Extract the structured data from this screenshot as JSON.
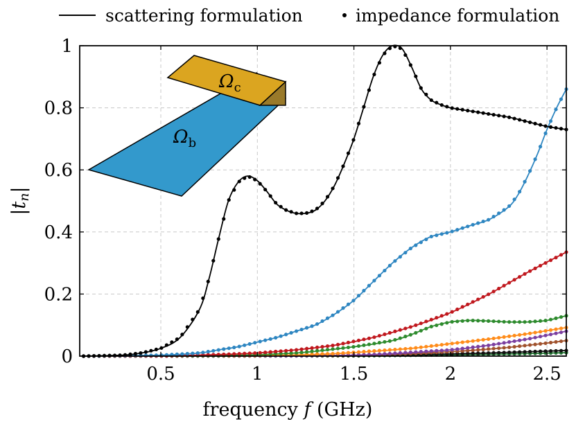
{
  "chart_data": {
    "type": "line",
    "xlabel": "frequency f (GHz)",
    "ylabel": "|t_n|",
    "xlim": [
      0.08,
      2.6
    ],
    "ylim": [
      0,
      1
    ],
    "xticks": [
      "0.5",
      "1",
      "1.5",
      "2",
      "2.5"
    ],
    "xtick_values": [
      0.5,
      1,
      1.5,
      2,
      2.5
    ],
    "yticks": [
      "0",
      "0.2",
      "0.4",
      "0.6",
      "0.8",
      "1"
    ],
    "ytick_values": [
      0,
      0.2,
      0.4,
      0.6,
      0.8,
      1
    ],
    "grid": true,
    "legend": {
      "placement": "top",
      "entries": [
        {
          "label": "scattering formulation",
          "marker": "line"
        },
        {
          "label": "impedance formulation",
          "marker": "dot"
        }
      ]
    },
    "inset": {
      "labels": [
        {
          "text": "Ω",
          "sub": "c"
        },
        {
          "text": "Ω",
          "sub": "b"
        }
      ],
      "colors": {
        "top_block": "#DBA520",
        "top_block_side": "#9A7A2A",
        "plate": "#3399CC"
      }
    },
    "series": [
      {
        "color": "#000000",
        "x": [
          0.1,
          0.3,
          0.4,
          0.5,
          0.6,
          0.7,
          0.75,
          0.8,
          0.85,
          0.9,
          0.95,
          1.0,
          1.05,
          1.1,
          1.15,
          1.2,
          1.25,
          1.3,
          1.35,
          1.4,
          1.45,
          1.5,
          1.55,
          1.6,
          1.65,
          1.7,
          1.75,
          1.8,
          1.85,
          1.9,
          1.95,
          2.0,
          2.1,
          2.2,
          2.3,
          2.4,
          2.5,
          2.6
        ],
        "y": [
          0.0,
          0.003,
          0.01,
          0.025,
          0.06,
          0.15,
          0.25,
          0.38,
          0.5,
          0.56,
          0.58,
          0.565,
          0.53,
          0.49,
          0.47,
          0.46,
          0.46,
          0.47,
          0.5,
          0.55,
          0.62,
          0.7,
          0.8,
          0.9,
          0.97,
          1.0,
          0.99,
          0.93,
          0.86,
          0.825,
          0.81,
          0.8,
          0.79,
          0.78,
          0.77,
          0.755,
          0.74,
          0.73
        ]
      },
      {
        "color": "#2E86C1",
        "x": [
          0.1,
          0.5,
          0.7,
          0.8,
          0.9,
          1.0,
          1.1,
          1.2,
          1.3,
          1.4,
          1.5,
          1.6,
          1.7,
          1.8,
          1.9,
          2.0,
          2.1,
          2.2,
          2.3,
          2.35,
          2.4,
          2.45,
          2.5,
          2.55,
          2.6
        ],
        "y": [
          0.0,
          0.003,
          0.01,
          0.02,
          0.03,
          0.045,
          0.06,
          0.08,
          0.1,
          0.135,
          0.18,
          0.24,
          0.3,
          0.35,
          0.385,
          0.4,
          0.42,
          0.44,
          0.48,
          0.52,
          0.58,
          0.65,
          0.73,
          0.8,
          0.86
        ]
      },
      {
        "color": "#C0181E",
        "x": [
          0.1,
          0.5,
          0.8,
          1.0,
          1.2,
          1.4,
          1.6,
          1.8,
          2.0,
          2.2,
          2.4,
          2.6
        ],
        "y": [
          0.0,
          0.001,
          0.005,
          0.01,
          0.02,
          0.035,
          0.06,
          0.095,
          0.14,
          0.2,
          0.27,
          0.335
        ]
      },
      {
        "color": "#2E8B2E",
        "x": [
          0.1,
          0.8,
          1.2,
          1.5,
          1.7,
          1.8,
          1.9,
          2.0,
          2.1,
          2.2,
          2.3,
          2.4,
          2.5,
          2.6
        ],
        "y": [
          0.0,
          0.002,
          0.01,
          0.03,
          0.05,
          0.07,
          0.095,
          0.11,
          0.115,
          0.113,
          0.11,
          0.11,
          0.115,
          0.13
        ]
      },
      {
        "color": "#FF8C1A",
        "x": [
          0.1,
          1.0,
          1.4,
          1.8,
          2.0,
          2.2,
          2.4,
          2.6
        ],
        "y": [
          0.0,
          0.002,
          0.008,
          0.025,
          0.04,
          0.055,
          0.072,
          0.092
        ]
      },
      {
        "color": "#7B3FA0",
        "x": [
          0.1,
          1.2,
          1.6,
          2.0,
          2.2,
          2.4,
          2.6
        ],
        "y": [
          0.0,
          0.001,
          0.005,
          0.02,
          0.035,
          0.055,
          0.08
        ]
      },
      {
        "color": "#A0522D",
        "x": [
          0.1,
          1.4,
          1.8,
          2.1,
          2.3,
          2.5,
          2.6
        ],
        "y": [
          0.0,
          0.002,
          0.008,
          0.018,
          0.028,
          0.042,
          0.05
        ]
      },
      {
        "color": "#111111",
        "x": [
          0.1,
          1.5,
          1.9,
          2.2,
          2.4,
          2.6
        ],
        "y": [
          0.0,
          0.002,
          0.006,
          0.01,
          0.014,
          0.018
        ]
      },
      {
        "color": "#1E6F2E",
        "x": [
          0.1,
          1.5,
          2.0,
          2.3,
          2.6
        ],
        "y": [
          0.0,
          0.001,
          0.004,
          0.007,
          0.011
        ]
      }
    ]
  }
}
